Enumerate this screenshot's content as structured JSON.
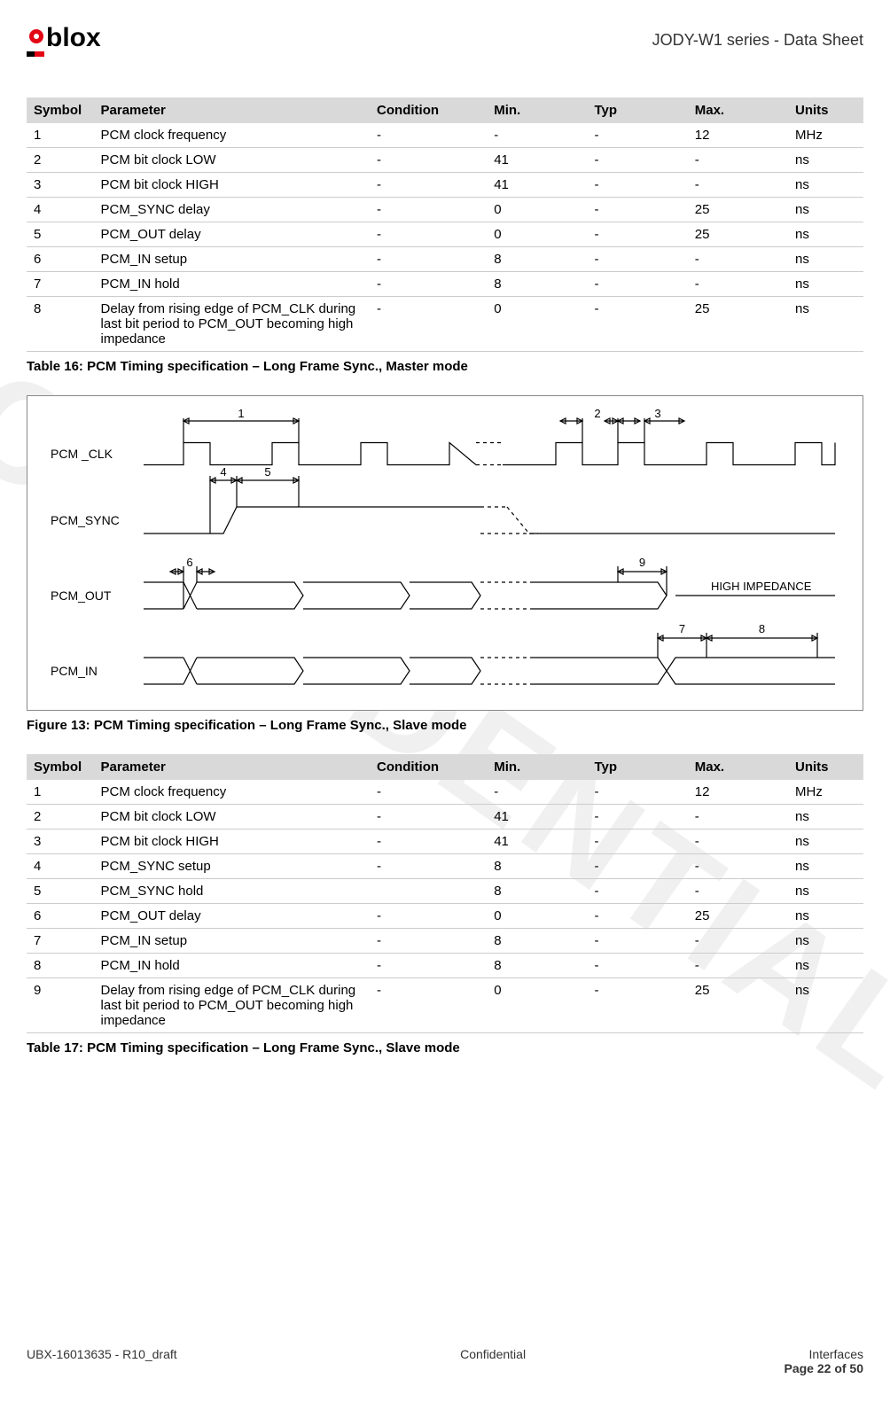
{
  "header": {
    "doc_title": "JODY-W1 series - Data Sheet",
    "logo_text": "blox",
    "logo_prefix": "u"
  },
  "watermark": "CONFIDENTIAL",
  "table16": {
    "caption": "Table 16: PCM Timing specification – Long Frame Sync., Master mode",
    "columns": [
      "Symbol",
      "Parameter",
      "Condition",
      "Min.",
      "Typ",
      "Max.",
      "Units"
    ],
    "rows": [
      [
        "1",
        "PCM clock frequency",
        "-",
        "-",
        "-",
        "12",
        "MHz"
      ],
      [
        "2",
        "PCM bit clock LOW",
        "-",
        "41",
        "-",
        "-",
        "ns"
      ],
      [
        "3",
        "PCM bit clock HIGH",
        "-",
        "41",
        "-",
        "-",
        "ns"
      ],
      [
        "4",
        "PCM_SYNC delay",
        "-",
        "0",
        "-",
        "25",
        "ns"
      ],
      [
        "5",
        "PCM_OUT delay",
        "-",
        "0",
        "-",
        "25",
        "ns"
      ],
      [
        "6",
        "PCM_IN setup",
        "-",
        "8",
        "-",
        "-",
        "ns"
      ],
      [
        "7",
        "PCM_IN hold",
        "-",
        "8",
        "-",
        "-",
        "ns"
      ],
      [
        "8",
        "Delay from rising edge of PCM_CLK during last bit period to PCM_OUT becoming high impedance",
        "-",
        "0",
        "-",
        "25",
        "ns"
      ]
    ]
  },
  "figure13": {
    "caption": "Figure 13: PCM Timing specification – Long Frame Sync., Slave mode",
    "signals": [
      "PCM _CLK",
      "PCM_SYNC",
      "PCM_OUT",
      "PCM_IN"
    ],
    "hi_z_label": "HIGH IMPEDANCE",
    "dim_labels": [
      "1",
      "2",
      "3",
      "4",
      "5",
      "6",
      "7",
      "8",
      "9"
    ],
    "colors": {
      "line": "#000000",
      "bg": "#ffffff",
      "border": "#888888"
    }
  },
  "table17": {
    "caption": "Table 17: PCM Timing specification – Long Frame Sync., Slave mode",
    "columns": [
      "Symbol",
      "Parameter",
      "Condition",
      "Min.",
      "Typ",
      "Max.",
      "Units"
    ],
    "rows": [
      [
        "1",
        "PCM clock frequency",
        "-",
        "-",
        "-",
        "12",
        "MHz"
      ],
      [
        "2",
        "PCM bit clock LOW",
        "-",
        "41",
        "-",
        "-",
        "ns"
      ],
      [
        "3",
        "PCM bit clock HIGH",
        "-",
        "41",
        "-",
        "-",
        "ns"
      ],
      [
        "4",
        "PCM_SYNC setup",
        "-",
        "8",
        "-",
        "-",
        "ns"
      ],
      [
        "5",
        "PCM_SYNC hold",
        "",
        "8",
        "-",
        "-",
        "ns"
      ],
      [
        "6",
        "PCM_OUT delay",
        "-",
        "0",
        "-",
        "25",
        "ns"
      ],
      [
        "7",
        "PCM_IN setup",
        "-",
        "8",
        "-",
        "-",
        "ns"
      ],
      [
        "8",
        "PCM_IN hold",
        "-",
        "8",
        "-",
        "-",
        "ns"
      ],
      [
        "9",
        "Delay from rising edge of PCM_CLK during last bit period to PCM_OUT becoming high impedance",
        "-",
        "0",
        "-",
        "25",
        "ns"
      ]
    ]
  },
  "footer": {
    "left": "UBX-16013635 - R10_draft",
    "center": "Confidential",
    "right": "Interfaces",
    "page": "Page 22 of 50"
  }
}
